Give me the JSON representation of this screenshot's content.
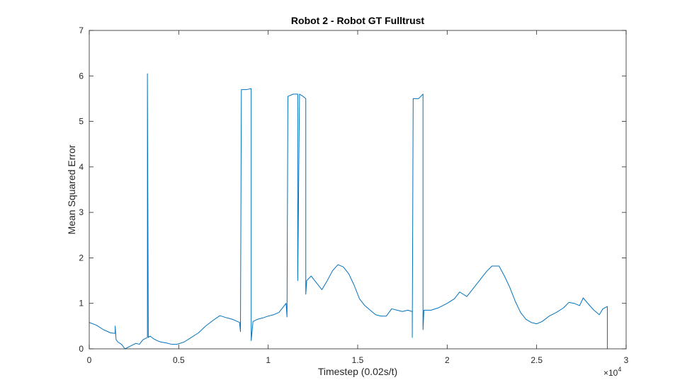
{
  "chart_data": {
    "type": "line",
    "title": "Robot 2 - Robot GT Fulltrust",
    "xlabel": "Timestep (0.02s/t)",
    "ylabel": "Mean Squared Error",
    "xlim": [
      0,
      30000
    ],
    "ylim": [
      0,
      7
    ],
    "x_exponent_label": "×10",
    "x_exponent_power": "4",
    "x_ticks": [
      0,
      5000,
      10000,
      15000,
      20000,
      25000,
      30000
    ],
    "x_tick_labels": [
      "0",
      "0.5",
      "1",
      "1.5",
      "2",
      "2.5",
      "3"
    ],
    "y_ticks": [
      0,
      1,
      2,
      3,
      4,
      5,
      6,
      7
    ],
    "y_tick_labels": [
      "0",
      "1",
      "2",
      "3",
      "4",
      "5",
      "6",
      "7"
    ],
    "grid": false,
    "series": [
      {
        "color": "#0072BD",
        "points": [
          [
            0,
            0.58
          ],
          [
            400,
            0.52
          ],
          [
            800,
            0.42
          ],
          [
            1200,
            0.35
          ],
          [
            1450,
            0.34
          ],
          [
            1450,
            0.5
          ],
          [
            1500,
            0.2
          ],
          [
            1600,
            0.15
          ],
          [
            1800,
            0.1
          ],
          [
            2000,
            0.0
          ],
          [
            2200,
            0.04
          ],
          [
            2400,
            0.08
          ],
          [
            2600,
            0.12
          ],
          [
            2800,
            0.1
          ],
          [
            3000,
            0.2
          ],
          [
            3250,
            0.25
          ],
          [
            3250,
            6.05
          ],
          [
            3300,
            0.25
          ],
          [
            3400,
            0.28
          ],
          [
            3600,
            0.22
          ],
          [
            3800,
            0.18
          ],
          [
            4000,
            0.15
          ],
          [
            4300,
            0.13
          ],
          [
            4600,
            0.1
          ],
          [
            4900,
            0.1
          ],
          [
            5300,
            0.15
          ],
          [
            5700,
            0.25
          ],
          [
            6100,
            0.35
          ],
          [
            6500,
            0.5
          ],
          [
            6900,
            0.62
          ],
          [
            7300,
            0.73
          ],
          [
            7700,
            0.68
          ],
          [
            8000,
            0.65
          ],
          [
            8400,
            0.58
          ],
          [
            8450,
            0.38
          ],
          [
            8500,
            5.7
          ],
          [
            8800,
            5.7
          ],
          [
            9050,
            5.72
          ],
          [
            9050,
            0.18
          ],
          [
            9150,
            0.6
          ],
          [
            9400,
            0.65
          ],
          [
            9700,
            0.68
          ],
          [
            10000,
            0.72
          ],
          [
            10300,
            0.75
          ],
          [
            10600,
            0.8
          ],
          [
            10800,
            0.9
          ],
          [
            11000,
            1.0
          ],
          [
            11050,
            0.7
          ],
          [
            11100,
            5.55
          ],
          [
            11400,
            5.6
          ],
          [
            11650,
            5.6
          ],
          [
            11650,
            1.5
          ],
          [
            11750,
            5.6
          ],
          [
            11950,
            5.55
          ],
          [
            12100,
            5.5
          ],
          [
            12100,
            1.2
          ],
          [
            12150,
            1.5
          ],
          [
            12400,
            1.6
          ],
          [
            12700,
            1.45
          ],
          [
            13000,
            1.3
          ],
          [
            13300,
            1.5
          ],
          [
            13600,
            1.72
          ],
          [
            13900,
            1.85
          ],
          [
            14200,
            1.8
          ],
          [
            14500,
            1.65
          ],
          [
            14800,
            1.4
          ],
          [
            15100,
            1.1
          ],
          [
            15400,
            0.95
          ],
          [
            15700,
            0.85
          ],
          [
            16000,
            0.75
          ],
          [
            16300,
            0.72
          ],
          [
            16600,
            0.72
          ],
          [
            16900,
            0.88
          ],
          [
            17200,
            0.85
          ],
          [
            17500,
            0.82
          ],
          [
            17800,
            0.85
          ],
          [
            18050,
            0.82
          ],
          [
            18050,
            0.25
          ],
          [
            18100,
            5.5
          ],
          [
            18400,
            5.5
          ],
          [
            18650,
            5.6
          ],
          [
            18650,
            0.42
          ],
          [
            18700,
            0.85
          ],
          [
            19100,
            0.85
          ],
          [
            19500,
            0.9
          ],
          [
            20000,
            1.0
          ],
          [
            20400,
            1.1
          ],
          [
            20700,
            1.25
          ],
          [
            21100,
            1.15
          ],
          [
            21400,
            1.3
          ],
          [
            21800,
            1.5
          ],
          [
            22200,
            1.7
          ],
          [
            22500,
            1.82
          ],
          [
            22900,
            1.82
          ],
          [
            23200,
            1.6
          ],
          [
            23500,
            1.35
          ],
          [
            23800,
            1.05
          ],
          [
            24100,
            0.8
          ],
          [
            24400,
            0.65
          ],
          [
            24700,
            0.58
          ],
          [
            25000,
            0.55
          ],
          [
            25300,
            0.6
          ],
          [
            25700,
            0.72
          ],
          [
            26100,
            0.8
          ],
          [
            26500,
            0.9
          ],
          [
            26800,
            1.02
          ],
          [
            27100,
            1.0
          ],
          [
            27400,
            0.95
          ],
          [
            27600,
            1.12
          ],
          [
            27900,
            0.98
          ],
          [
            28200,
            0.85
          ],
          [
            28500,
            0.75
          ],
          [
            28700,
            0.88
          ],
          [
            28950,
            0.93
          ],
          [
            28950,
            0.0
          ]
        ]
      }
    ]
  }
}
